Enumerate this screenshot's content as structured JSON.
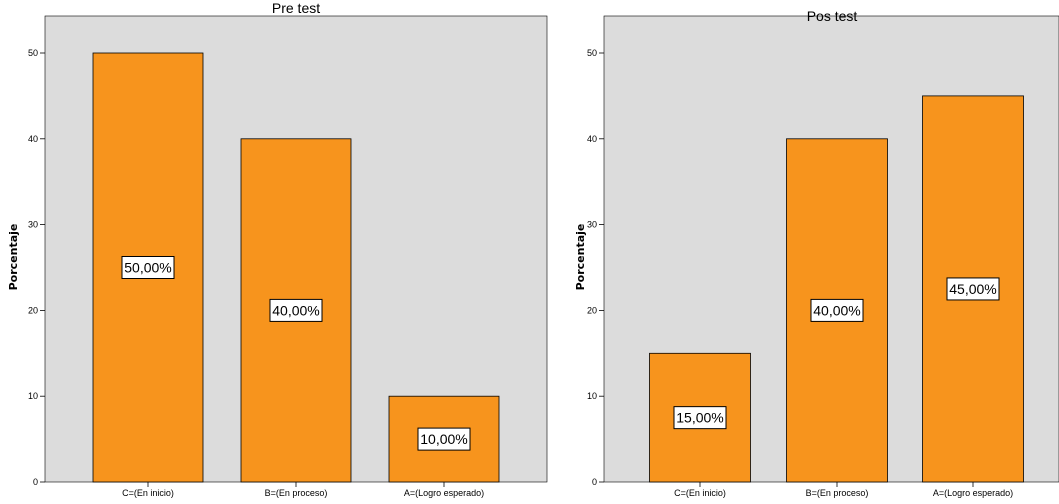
{
  "chart_data": [
    {
      "type": "bar",
      "title": "Pre test",
      "ylabel": "Porcentaje",
      "xlabel": "",
      "categories": [
        "C=(En inicio)",
        "B=(En proceso)",
        "A=(Logro esperado)"
      ],
      "values": [
        50,
        40,
        10
      ],
      "data_labels": [
        "50,00%",
        "40,00%",
        "10,00%"
      ],
      "ylim": [
        0,
        50
      ],
      "yticks": [
        0,
        10,
        20,
        30,
        40,
        50
      ],
      "grid": false,
      "bar_color": "#f7941d",
      "plot_background": "#dcdcdc"
    },
    {
      "type": "bar",
      "title": "Pos test",
      "ylabel": "Porcentaje",
      "xlabel": "",
      "categories": [
        "C=(En inicio)",
        "B=(En proceso)",
        "A=(Logro esperado)"
      ],
      "values": [
        15,
        40,
        45
      ],
      "data_labels": [
        "15,00%",
        "40,00%",
        "45,00%"
      ],
      "ylim": [
        0,
        50
      ],
      "yticks": [
        0,
        10,
        20,
        30,
        40,
        50
      ],
      "grid": false,
      "bar_color": "#f7941d",
      "plot_background": "#dcdcdc"
    }
  ]
}
